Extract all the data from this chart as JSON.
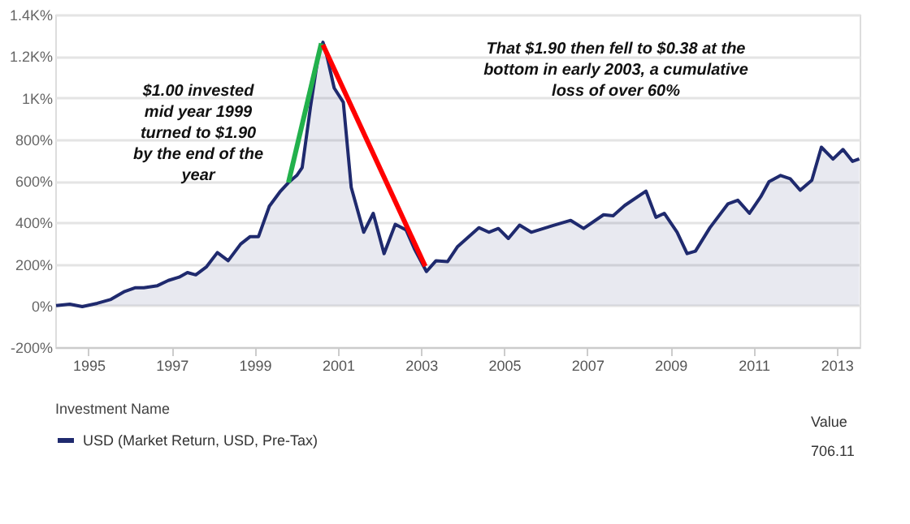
{
  "chart_data": {
    "type": "area",
    "annotations": [
      "$1.00 invested mid year 1999 turned to $1.90 by the end of the year",
      "That $1.90 then fell to $0.38 at the bottom in early 2003, a cumulative loss of over 60%",
      "Value",
      "706.11"
    ],
    "x": [
      1994.22,
      1994.55,
      1994.85,
      1995.21,
      1995.54,
      1995.87,
      1996.13,
      1996.33,
      1996.66,
      1996.92,
      1997.18,
      1997.38,
      1997.58,
      1997.84,
      1998.1,
      1998.36,
      1998.66,
      1998.89,
      1999.09,
      1999.35,
      1999.62,
      1999.81,
      2000.01,
      2000.14,
      2000.34,
      2000.53,
      2000.64,
      2000.73,
      2000.91,
      2001.13,
      2001.32,
      2001.62,
      2001.85,
      2002.11,
      2002.38,
      2002.64,
      2002.84,
      2003.13,
      2003.36,
      2003.64,
      2003.88,
      2004.39,
      2004.63,
      2004.86,
      2005.1,
      2005.37,
      2005.65,
      2006.2,
      2006.6,
      2006.91,
      2007.39,
      2007.62,
      2007.9,
      2008.41,
      2008.65,
      2008.85,
      2009.16,
      2009.4,
      2009.6,
      2009.95,
      2010.38,
      2010.62,
      2010.9,
      2011.17,
      2011.37,
      2011.65,
      2011.88,
      2012.12,
      2012.4,
      2012.63,
      2012.91,
      2013.15,
      2013.38,
      2013.54
    ],
    "series": [
      {
        "name": "USD (Market Return, USD, Pre-Tax)",
        "color": "#1f2a6e",
        "values": [
          0,
          7,
          -5,
          11,
          30,
          68,
          86,
          86,
          96,
          121,
          137,
          159,
          148,
          187,
          255,
          216,
          296,
          332,
          332,
          478,
          551,
          592,
          626,
          664,
          956,
          1206,
          1267,
          1206,
          1047,
          978,
          569,
          353,
          444,
          250,
          391,
          364,
          273,
          164,
          216,
          212,
          284,
          375,
          353,
          371,
          323,
          387,
          353,
          387,
          410,
          371,
          437,
          432,
          482,
          551,
          425,
          444,
          353,
          250,
          262,
          375,
          489,
          507,
          444,
          523,
          596,
          626,
          610,
          555,
          603,
          762,
          705,
          751,
          694,
          706.11
        ]
      },
      {
        "type": "line",
        "color": "#22b14c",
        "x": [
          1999.81,
          2000.6
        ],
        "values": [
          592,
          1262
        ]
      },
      {
        "type": "line",
        "color": "#ff0000",
        "x": [
          2000.64,
          2003.1
        ],
        "values": [
          1255,
          189
        ]
      }
    ],
    "xlim": [
      1994.2,
      2013.55
    ],
    "xticks": [
      1995,
      1997,
      1999,
      2001,
      2003,
      2005,
      2007,
      2009,
      2011,
      2013
    ],
    "ylim": [
      -200,
      1400
    ],
    "yticks": [
      {
        "value": -200,
        "label": "-200%"
      },
      {
        "value": 0,
        "label": "0%"
      },
      {
        "value": 200,
        "label": "200%"
      },
      {
        "value": 400,
        "label": "400%"
      },
      {
        "value": 600,
        "label": "600%"
      },
      {
        "value": 800,
        "label": "800%"
      },
      {
        "value": 1000,
        "label": "1K%"
      },
      {
        "value": 1200,
        "label": "1.2K%"
      },
      {
        "value": 1400,
        "label": "1.4K%"
      }
    ],
    "grid": "y",
    "legend": "bottom",
    "legend_title": "Investment Name",
    "line_style": "solid"
  }
}
